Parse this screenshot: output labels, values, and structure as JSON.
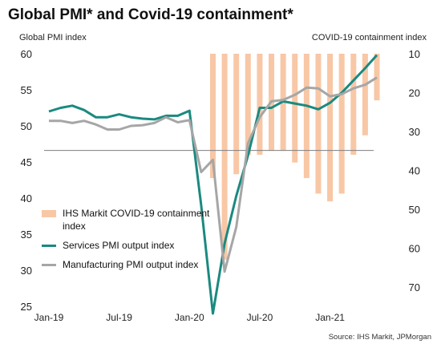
{
  "title": "Global PMI* and Covid-19 containment*",
  "source": "Source: IHS Markit, JPMorgan",
  "colors": {
    "services": "#1a8a80",
    "manufacturing": "#a6a6a6",
    "containment": "#f8c7a6",
    "reference_line": "#7f7f7f"
  },
  "chart_data": {
    "type": "line",
    "title": "Global PMI* and Covid-19 containment*",
    "left_axis": {
      "label": "Global PMI index",
      "ylim": [
        25,
        60
      ],
      "ticks": [
        25,
        30,
        35,
        40,
        45,
        50,
        55,
        60
      ]
    },
    "right_axis": {
      "label": "COVID-19 containment index",
      "inverted": true,
      "ylim": [
        10,
        75
      ],
      "ticks": [
        10,
        20,
        30,
        40,
        50,
        60,
        70
      ]
    },
    "x_labels": [
      "Jan-19",
      "Jul-19",
      "Jan-20",
      "Jul-20",
      "Jan-21"
    ],
    "x": [
      "Jan-19",
      "Feb-19",
      "Mar-19",
      "Apr-19",
      "May-19",
      "Jun-19",
      "Jul-19",
      "Aug-19",
      "Sep-19",
      "Oct-19",
      "Nov-19",
      "Dec-19",
      "Jan-20",
      "Feb-20",
      "Mar-20",
      "Apr-20",
      "May-20",
      "Jun-20",
      "Jul-20",
      "Aug-20",
      "Sep-20",
      "Oct-20",
      "Nov-20",
      "Dec-20",
      "Jan-21",
      "Feb-21",
      "Mar-21",
      "Apr-21",
      "May-21"
    ],
    "reference_line": 46.6,
    "grid": false,
    "legend_position": "lower-left",
    "series": [
      {
        "name": "IHS Markit COVID-19 containment index",
        "type": "bar",
        "axis": "right",
        "values": [
          null,
          null,
          null,
          null,
          null,
          null,
          null,
          null,
          null,
          null,
          null,
          null,
          null,
          null,
          42,
          63,
          41,
          36,
          36,
          35,
          35,
          38,
          42,
          46,
          48,
          46,
          36,
          31,
          22
        ]
      },
      {
        "name": "Services PMI output index",
        "type": "line",
        "axis": "left",
        "values": [
          52.0,
          52.5,
          52.8,
          52.2,
          51.2,
          51.2,
          51.6,
          51.2,
          51.0,
          50.9,
          51.4,
          51.4,
          52.1,
          39.0,
          24.0,
          33.7,
          40.3,
          45.9,
          52.5,
          52.5,
          53.4,
          53.1,
          52.8,
          52.3,
          53.2,
          54.6,
          56.3,
          58.0,
          59.8
        ]
      },
      {
        "name": "Manufacturing PMI output index",
        "type": "line",
        "axis": "left",
        "values": [
          50.7,
          50.7,
          50.4,
          50.7,
          50.2,
          49.5,
          49.5,
          50.0,
          50.1,
          50.4,
          51.2,
          50.5,
          50.8,
          43.6,
          45.3,
          29.8,
          36.0,
          47.6,
          51.2,
          53.4,
          53.6,
          54.3,
          55.3,
          55.2,
          54.1,
          54.4,
          55.2,
          55.7,
          56.7
        ]
      }
    ]
  },
  "legend": [
    {
      "label": "IHS Markit COVID-19 containment index"
    },
    {
      "label": "Services PMI output index"
    },
    {
      "label": "Manufacturing PMI output index"
    }
  ]
}
